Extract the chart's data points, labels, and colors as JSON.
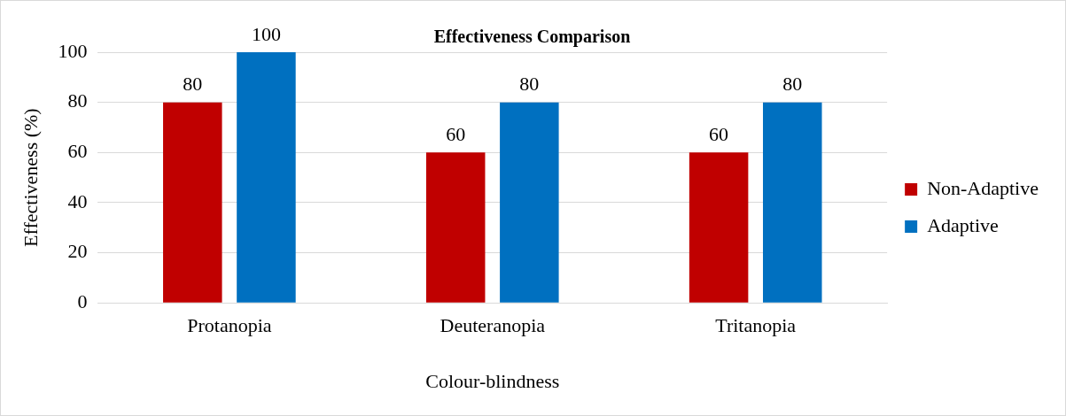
{
  "chart_data": {
    "type": "bar",
    "title": "Effectiveness Comparison",
    "xlabel": "Colour-blindness",
    "ylabel": "Effectiveness (%)",
    "categories": [
      "Protanopia",
      "Deuteranopia",
      "Tritanopia"
    ],
    "series": [
      {
        "name": "Non-Adaptive",
        "color": "#c00000",
        "values": [
          80,
          60,
          60
        ]
      },
      {
        "name": "Adaptive",
        "color": "#0070c0",
        "values": [
          100,
          80,
          80
        ]
      }
    ],
    "ylim": [
      0,
      100
    ],
    "yticks": [
      0,
      20,
      40,
      60,
      80,
      100
    ],
    "grid": "y",
    "legend": "right",
    "data_labels": true
  }
}
